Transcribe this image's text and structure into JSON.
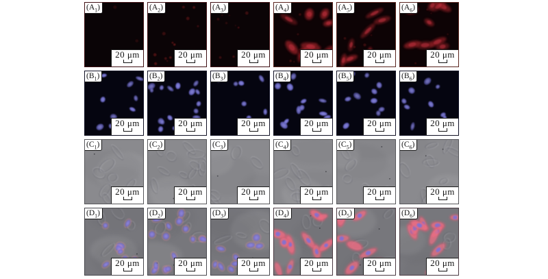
{
  "figure": {
    "name": "fluorescence-microscopy-panel-grid",
    "background": "#ffffff",
    "scale_bar_label": "20 μm",
    "rows_meaning": [
      "A: red fluorescence channel",
      "B: blue nuclear stain channel",
      "C: DIC brightfield",
      "D: merged overlay"
    ],
    "colors": {
      "red_dim": "#6b1218",
      "red_bright": "#871a20",
      "red_core": "#c23240",
      "blue_nucleus": "#6a68c6",
      "blue_core": "#a2a0ea",
      "dic_gray": "#8a8a8e",
      "merge_gray": "#77777c",
      "merge_red": "#e25c74",
      "merge_red_core": "#f37d90",
      "merge_nucleus": "#7e71d6",
      "merge_rim": "#e78aa0"
    }
  },
  "panels": [
    {
      "id": "A1",
      "label_prefix": "(A",
      "label_sub": "1",
      "label_suffix": ")",
      "kind": "red_blank",
      "count": 2,
      "seed": 101,
      "border": "#401014"
    },
    {
      "id": "A2",
      "label_prefix": "(A",
      "label_sub": "2",
      "label_suffix": ")",
      "kind": "red_specks",
      "count": 14,
      "seed": 102,
      "border": "#401014"
    },
    {
      "id": "A3",
      "label_prefix": "(A",
      "label_sub": "3",
      "label_suffix": ")",
      "kind": "red_specks",
      "count": 11,
      "seed": 103,
      "border": "#401014"
    },
    {
      "id": "A4",
      "label_prefix": "(A",
      "label_sub": "4",
      "label_suffix": ")",
      "kind": "red_cells",
      "count": 10,
      "seed": 104,
      "border": "#5a241e"
    },
    {
      "id": "A5",
      "label_prefix": "(A",
      "label_sub": "5",
      "label_suffix": ")",
      "kind": "red_cells",
      "count": 8,
      "seed": 105,
      "border": "#5a241e"
    },
    {
      "id": "A6",
      "label_prefix": "(A",
      "label_sub": "6",
      "label_suffix": ")",
      "kind": "red_cells",
      "count": 10,
      "seed": 106,
      "border": "#5a241e"
    },
    {
      "id": "B1",
      "label_prefix": "(B",
      "label_sub": "1",
      "label_suffix": ")",
      "kind": "blue_nuclei",
      "count": 10,
      "seed": 201,
      "border": "#101024"
    },
    {
      "id": "B2",
      "label_prefix": "(B",
      "label_sub": "2",
      "label_suffix": ")",
      "kind": "blue_nuclei",
      "count": 17,
      "seed": 202,
      "border": "#101024"
    },
    {
      "id": "B3",
      "label_prefix": "(B",
      "label_sub": "3",
      "label_suffix": ")",
      "kind": "blue_nuclei",
      "count": 9,
      "seed": 203,
      "border": "#101024"
    },
    {
      "id": "B4",
      "label_prefix": "(B",
      "label_sub": "4",
      "label_suffix": ")",
      "kind": "blue_nuclei",
      "count": 11,
      "seed": 204,
      "border": "#101024"
    },
    {
      "id": "B5",
      "label_prefix": "(B",
      "label_sub": "5",
      "label_suffix": ")",
      "kind": "blue_nuclei",
      "count": 10,
      "seed": 205,
      "border": "#101024"
    },
    {
      "id": "B6",
      "label_prefix": "(B",
      "label_sub": "6",
      "label_suffix": ")",
      "kind": "blue_nuclei",
      "count": 9,
      "seed": 206,
      "border": "#101024"
    },
    {
      "id": "C1",
      "label_prefix": "(C",
      "label_sub": "1",
      "label_suffix": ")",
      "kind": "dic",
      "count": 7,
      "seed": 301,
      "border": "#56565a"
    },
    {
      "id": "C2",
      "label_prefix": "(C",
      "label_sub": "2",
      "label_suffix": ")",
      "kind": "dic",
      "count": 12,
      "seed": 302,
      "border": "#56565a"
    },
    {
      "id": "C3",
      "label_prefix": "(C",
      "label_sub": "3",
      "label_suffix": ")",
      "kind": "dic",
      "count": 6,
      "seed": 303,
      "border": "#56565a"
    },
    {
      "id": "C4",
      "label_prefix": "(C",
      "label_sub": "4",
      "label_suffix": ")",
      "kind": "dic",
      "count": 8,
      "seed": 304,
      "border": "#56565a"
    },
    {
      "id": "C5",
      "label_prefix": "(C",
      "label_sub": "5",
      "label_suffix": ")",
      "kind": "dic",
      "count": 6,
      "seed": 305,
      "border": "#56565a"
    },
    {
      "id": "C6",
      "label_prefix": "(C",
      "label_sub": "6",
      "label_suffix": ")",
      "kind": "dic",
      "count": 9,
      "seed": 306,
      "border": "#56565a"
    },
    {
      "id": "D1",
      "label_prefix": "(D",
      "label_sub": "1",
      "label_suffix": ")",
      "kind": "merge_blue",
      "count": 10,
      "seed": 401,
      "border": "#48484e"
    },
    {
      "id": "D2",
      "label_prefix": "(D",
      "label_sub": "2",
      "label_suffix": ")",
      "kind": "merge_blue",
      "count": 16,
      "seed": 402,
      "border": "#48484e"
    },
    {
      "id": "D3",
      "label_prefix": "(D",
      "label_sub": "3",
      "label_suffix": ")",
      "kind": "merge_blue",
      "count": 9,
      "seed": 403,
      "border": "#48484e"
    },
    {
      "id": "D4",
      "label_prefix": "(D",
      "label_sub": "4",
      "label_suffix": ")",
      "kind": "merge_red",
      "count": 10,
      "seed": 404,
      "border": "#4a3a42"
    },
    {
      "id": "D5",
      "label_prefix": "(D",
      "label_sub": "5",
      "label_suffix": ")",
      "kind": "merge_red",
      "count": 8,
      "seed": 405,
      "border": "#4a3a42"
    },
    {
      "id": "D6",
      "label_prefix": "(D",
      "label_sub": "6",
      "label_suffix": ")",
      "kind": "merge_red",
      "count": 10,
      "seed": 406,
      "border": "#4a3a42"
    }
  ]
}
